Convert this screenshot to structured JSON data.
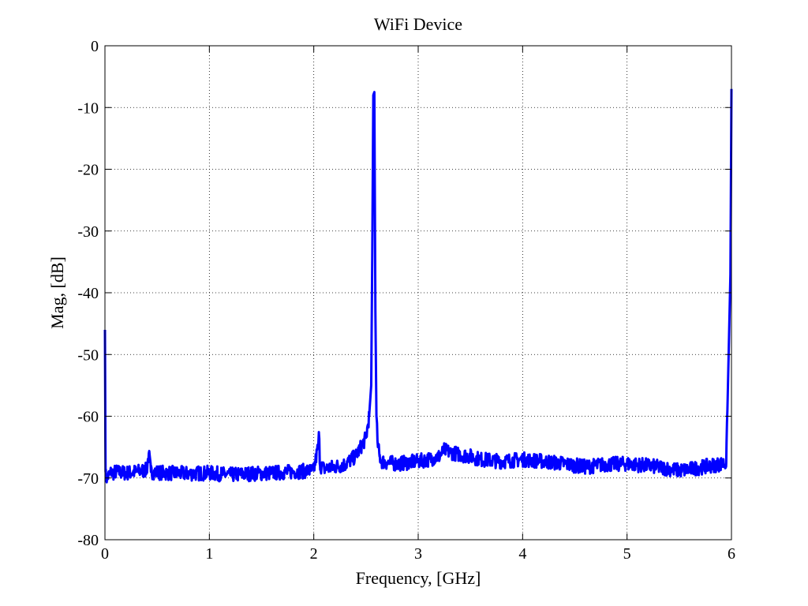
{
  "chart_data": {
    "type": "line",
    "title": "WiFi Device",
    "xlabel": "Frequency, [GHz]",
    "ylabel": "Mag, [dB]",
    "xlim": [
      0,
      6
    ],
    "ylim": [
      -80,
      0
    ],
    "xticks": [
      0,
      1,
      2,
      3,
      4,
      5,
      6
    ],
    "yticks": [
      0,
      -10,
      -20,
      -30,
      -40,
      -50,
      -60,
      -70,
      -80
    ],
    "xtick_labels": [
      "0",
      "1",
      "2",
      "3",
      "4",
      "5",
      "6"
    ],
    "ytick_labels": [
      "0",
      "-10",
      "-20",
      "-30",
      "-40",
      "-50",
      "-60",
      "-70",
      "-80"
    ],
    "grid": true,
    "line_color": "#0000ff",
    "series": [
      {
        "x": [
          0,
          0.003,
          0.006,
          0.01,
          0.02,
          0.04,
          0.06,
          0.08,
          0.1,
          0.2,
          0.3,
          0.4,
          0.42,
          0.44,
          0.6,
          0.8,
          1.0,
          1.2,
          1.4,
          1.6,
          1.8,
          2.0,
          2.04,
          2.05,
          2.06,
          2.1,
          2.2,
          2.3,
          2.4,
          2.45,
          2.5,
          2.53,
          2.55,
          2.56,
          2.57,
          2.58,
          2.59,
          2.6,
          2.61,
          2.63,
          2.65,
          2.7,
          2.8,
          2.9,
          3.0,
          3.1,
          3.2,
          3.25,
          3.3,
          3.4,
          3.5,
          3.6,
          3.8,
          4.0,
          4.2,
          4.4,
          4.6,
          4.8,
          5.0,
          5.2,
          5.4,
          5.5,
          5.6,
          5.8,
          5.95,
          5.99,
          6.0
        ],
        "y": [
          -46,
          -58,
          -69,
          -70,
          -70,
          -69.5,
          -69,
          -69.2,
          -69,
          -69.2,
          -69,
          -68.7,
          -66,
          -69,
          -69.2,
          -69.3,
          -69.2,
          -69.5,
          -69.3,
          -69.2,
          -69,
          -68.8,
          -65,
          -63,
          -68,
          -68.5,
          -68.2,
          -67.8,
          -66.5,
          -65,
          -63.5,
          -60,
          -55,
          -34,
          -8,
          -7.5,
          -43,
          -60,
          -64,
          -66.5,
          -67.3,
          -67.5,
          -67.7,
          -67.5,
          -67.3,
          -67,
          -66.5,
          -65.5,
          -65.8,
          -66.2,
          -66.5,
          -67,
          -67.3,
          -67,
          -67.3,
          -67.7,
          -68.2,
          -67.8,
          -67.7,
          -68,
          -68.5,
          -68.8,
          -68.6,
          -68,
          -67.6,
          -37,
          -7
        ]
      }
    ]
  }
}
